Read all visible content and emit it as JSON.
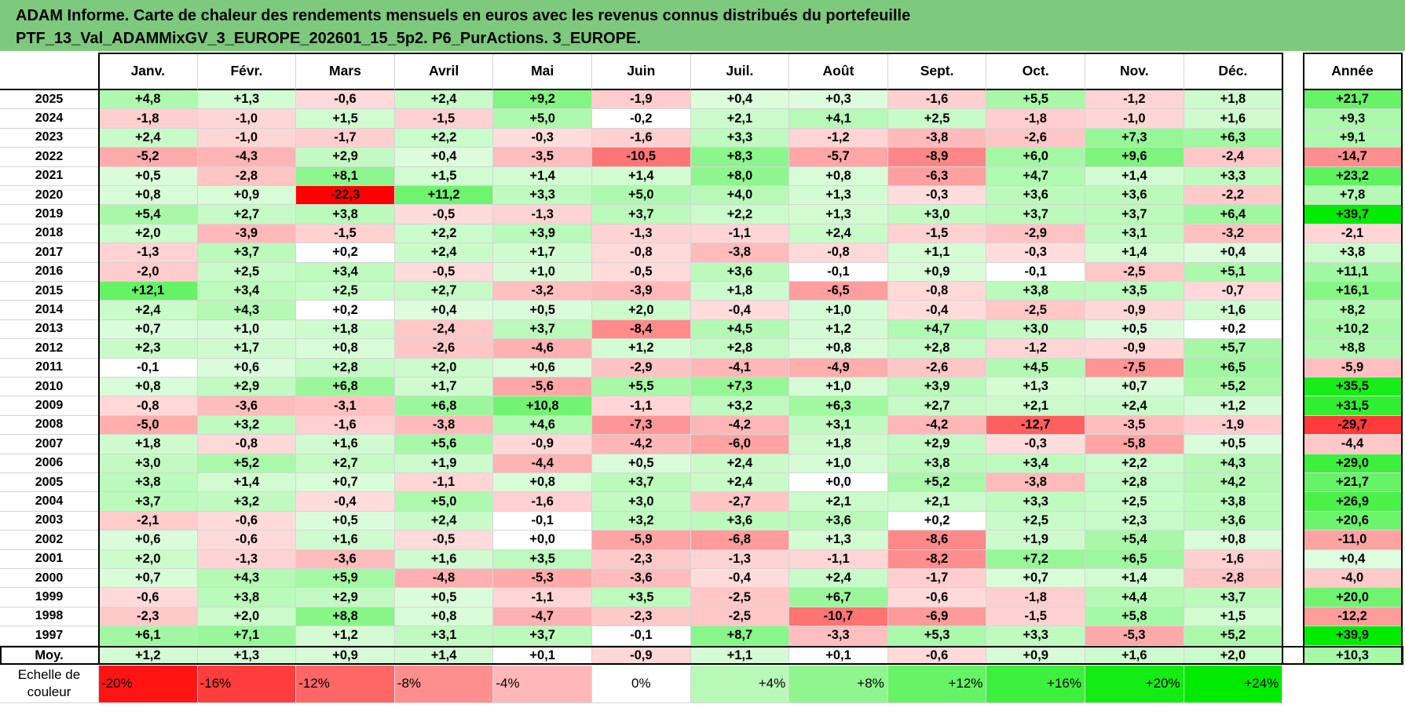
{
  "title": {
    "line1": "ADAM Informe. Carte de chaleur des rendements mensuels en euros avec les revenus connus distribués du portefeuille",
    "line2": "PTF_13_Val_ADAMMixGV_3_EUROPE_202601_15_5p2. P6_PurActions. 3_EUROPE."
  },
  "chart_data": {
    "type": "heatmap",
    "columns": [
      "Janv.",
      "Févr.",
      "Mars",
      "Avril",
      "Mai",
      "Juin",
      "Juil.",
      "Août",
      "Sept.",
      "Oct.",
      "Nov.",
      "Déc."
    ],
    "annual_header": "Année",
    "years": [
      "2025",
      "2024",
      "2023",
      "2022",
      "2021",
      "2020",
      "2019",
      "2018",
      "2017",
      "2016",
      "2015",
      "2014",
      "2013",
      "2012",
      "2011",
      "2010",
      "2009",
      "2008",
      "2007",
      "2006",
      "2005",
      "2004",
      "2003",
      "2002",
      "2001",
      "2000",
      "1999",
      "1998",
      "1997"
    ],
    "values": [
      [
        4.8,
        1.3,
        -0.6,
        2.4,
        9.2,
        -1.9,
        0.4,
        0.3,
        -1.6,
        5.5,
        -1.2,
        1.8
      ],
      [
        -1.8,
        -1.0,
        1.5,
        -1.5,
        5.0,
        -0.2,
        2.1,
        4.1,
        2.5,
        -1.8,
        -1.0,
        1.6
      ],
      [
        2.4,
        -1.0,
        -1.7,
        2.2,
        -0.3,
        -1.6,
        3.3,
        -1.2,
        -3.8,
        -2.6,
        7.3,
        6.3
      ],
      [
        -5.2,
        -4.3,
        2.9,
        0.4,
        -3.5,
        -10.5,
        8.3,
        -5.7,
        -8.9,
        6.0,
        9.6,
        -2.4
      ],
      [
        0.5,
        -2.8,
        8.1,
        1.5,
        1.4,
        1.4,
        8.0,
        0.8,
        -6.3,
        4.7,
        1.4,
        3.3
      ],
      [
        0.8,
        0.9,
        -22.3,
        11.2,
        3.3,
        5.0,
        4.0,
        1.3,
        -0.3,
        3.6,
        3.6,
        -2.2
      ],
      [
        5.4,
        2.7,
        3.8,
        -0.5,
        -1.3,
        3.7,
        2.2,
        1.3,
        3.0,
        3.7,
        3.7,
        6.4
      ],
      [
        2.0,
        -3.9,
        -1.5,
        2.2,
        3.9,
        -1.3,
        -1.1,
        2.4,
        -1.5,
        -2.9,
        3.1,
        -3.2
      ],
      [
        -1.3,
        3.7,
        0.2,
        2.4,
        1.7,
        -0.8,
        -3.8,
        -0.8,
        1.1,
        -0.3,
        1.4,
        0.4
      ],
      [
        -2.0,
        2.5,
        3.4,
        -0.5,
        1.0,
        -0.5,
        3.6,
        -0.1,
        0.9,
        -0.1,
        -2.5,
        5.1
      ],
      [
        12.1,
        3.4,
        2.5,
        2.7,
        -3.2,
        -3.9,
        1.8,
        -6.5,
        -0.8,
        3.8,
        3.5,
        -0.7
      ],
      [
        2.4,
        4.3,
        0.2,
        0.4,
        0.5,
        2.0,
        -0.4,
        1.0,
        -0.4,
        -2.5,
        -0.9,
        1.6
      ],
      [
        0.7,
        1.0,
        1.8,
        -2.4,
        3.7,
        -8.4,
        4.5,
        1.2,
        4.7,
        3.0,
        0.5,
        0.2
      ],
      [
        2.3,
        1.7,
        0.8,
        -2.6,
        -4.6,
        1.2,
        2.8,
        0.8,
        2.8,
        -1.2,
        -0.9,
        5.7
      ],
      [
        -0.1,
        0.6,
        2.8,
        2.0,
        0.6,
        -2.9,
        -4.1,
        -4.9,
        -2.6,
        4.5,
        -7.5,
        6.5
      ],
      [
        0.8,
        2.9,
        6.8,
        1.7,
        -5.6,
        5.5,
        7.3,
        1.0,
        3.9,
        1.3,
        0.7,
        5.2
      ],
      [
        -0.8,
        -3.6,
        -3.1,
        6.8,
        10.8,
        -1.1,
        3.2,
        6.3,
        2.7,
        2.1,
        2.4,
        1.2
      ],
      [
        -5.0,
        3.2,
        -1.6,
        -3.8,
        4.6,
        -7.3,
        -4.2,
        3.1,
        -4.2,
        -12.7,
        -3.5,
        -1.9
      ],
      [
        1.8,
        -0.8,
        1.6,
        5.6,
        -0.9,
        -4.2,
        -6.0,
        1.8,
        2.9,
        -0.3,
        -5.8,
        0.5
      ],
      [
        3.0,
        5.2,
        2.7,
        1.9,
        -4.4,
        0.5,
        2.4,
        1.0,
        3.8,
        3.4,
        2.2,
        4.3
      ],
      [
        3.8,
        1.4,
        0.7,
        -1.1,
        0.8,
        3.7,
        2.4,
        0.0,
        5.2,
        -3.8,
        2.8,
        4.2
      ],
      [
        3.7,
        3.2,
        -0.4,
        5.0,
        -1.6,
        3.0,
        -2.7,
        2.1,
        2.1,
        3.3,
        2.5,
        3.8
      ],
      [
        -2.1,
        -0.6,
        0.5,
        2.4,
        -0.1,
        3.2,
        3.6,
        3.6,
        0.2,
        2.5,
        2.3,
        3.6
      ],
      [
        0.6,
        -0.6,
        1.6,
        -0.5,
        0.0,
        -5.9,
        -6.8,
        1.3,
        -8.6,
        1.9,
        5.4,
        0.8
      ],
      [
        2.0,
        -1.3,
        -3.6,
        1.6,
        3.5,
        -2.3,
        -1.3,
        -1.1,
        -8.2,
        7.2,
        6.5,
        -1.6
      ],
      [
        0.7,
        4.3,
        5.9,
        -4.8,
        -5.3,
        -3.6,
        -0.4,
        2.4,
        -1.7,
        0.7,
        1.4,
        -2.8
      ],
      [
        -0.6,
        3.8,
        2.9,
        0.5,
        -1.1,
        3.5,
        -2.5,
        6.7,
        -0.6,
        -1.8,
        4.4,
        3.7
      ],
      [
        -2.3,
        2.0,
        8.8,
        0.8,
        -4.7,
        -2.3,
        -2.5,
        -10.7,
        -6.9,
        -1.5,
        5.8,
        1.5
      ],
      [
        6.1,
        7.1,
        1.2,
        3.1,
        3.7,
        -0.1,
        8.7,
        -3.3,
        5.3,
        3.3,
        -5.3,
        5.2
      ]
    ],
    "annual": [
      21.7,
      9.3,
      9.1,
      -14.7,
      23.2,
      7.8,
      39.7,
      -2.1,
      3.8,
      11.1,
      16.1,
      8.2,
      10.2,
      8.8,
      -5.9,
      35.5,
      31.5,
      -29.7,
      -4.4,
      29.0,
      21.7,
      26.9,
      20.6,
      -11.0,
      0.4,
      -4.0,
      20.0,
      -12.2,
      39.9
    ],
    "average": {
      "label": "Moy.",
      "values": [
        1.2,
        1.3,
        0.9,
        1.4,
        0.1,
        -0.9,
        1.1,
        0.1,
        -0.6,
        0.9,
        1.6,
        2.0
      ],
      "annual": 10.3
    },
    "color_scale": {
      "label_line1": "Echelle de",
      "label_line2": "couleur",
      "stops": [
        "-20%",
        "-16%",
        "-12%",
        "-8%",
        "-4%",
        "0%",
        "+4%",
        "+8%",
        "+12%",
        "+16%",
        "+20%",
        "+24%"
      ],
      "stop_values": [
        -20,
        -16,
        -12,
        -8,
        -4,
        0,
        4,
        8,
        12,
        16,
        20,
        24
      ],
      "negative_color": "#ff0000",
      "positive_color": "#00ee00",
      "neutral_color": "#ffffff"
    }
  }
}
